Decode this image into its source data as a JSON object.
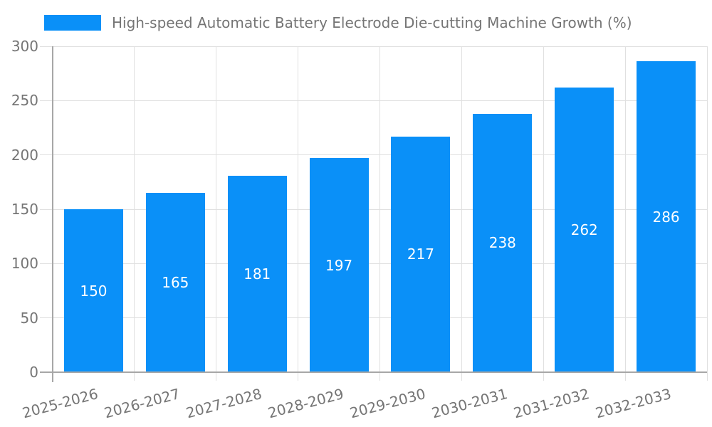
{
  "chart_data": {
    "type": "bar",
    "title": "",
    "legend": "High-speed Automatic Battery Electrode Die-cutting Machine Growth (%)",
    "legend_position": "top-left",
    "categories": [
      "2025-2026",
      "2026-2027",
      "2027-2028",
      "2028-2029",
      "2029-2030",
      "2030-2031",
      "2031-2032",
      "2032-2033"
    ],
    "values": [
      150,
      165,
      181,
      197,
      217,
      238,
      262,
      286
    ],
    "xlabel": "",
    "ylabel": "",
    "ylim": [
      0,
      300
    ],
    "yticks": [
      0,
      50,
      100,
      150,
      200,
      250,
      300
    ],
    "grid": true,
    "bar_color": "#0a90f8",
    "bar_value_label_color": "#ffffff",
    "axis_text_color": "#757575",
    "grid_color": "#e0e0e0",
    "axis_line_color": "#a7a7a7"
  }
}
